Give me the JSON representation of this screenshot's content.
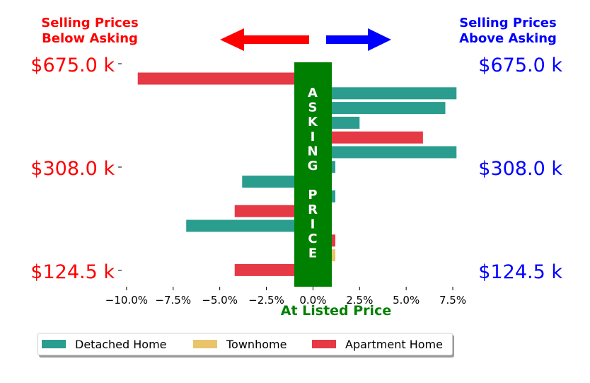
{
  "header": {
    "left_title_line1": "Selling Prices",
    "left_title_line2": "Below Asking",
    "right_title_line1": "Selling Prices",
    "right_title_line2": "Above Asking"
  },
  "colors": {
    "below": "#ff0000",
    "above": "#0000ff",
    "asking_band": "#008000",
    "detached": "#2a9d8f",
    "townhome": "#e9c46a",
    "apartment": "#e63946"
  },
  "price_labels": [
    "$675.0 k",
    "$308.0 k",
    "$124.5 k"
  ],
  "asking_band_text": [
    "A",
    "S",
    "K",
    "I",
    "N",
    "G",
    "",
    "P",
    "R",
    "I",
    "C",
    "E"
  ],
  "legend": [
    {
      "label": "Detached Home",
      "key": "detached"
    },
    {
      "label": "Townhome",
      "key": "townhome"
    },
    {
      "label": "Apartment Home",
      "key": "apartment"
    }
  ],
  "chart_data": {
    "type": "bar",
    "orientation": "horizontal",
    "xlabel": "At Listed Price",
    "xlim": [
      -0.1,
      0.08
    ],
    "xticks": [
      -0.1,
      -0.075,
      -0.05,
      -0.025,
      0.0,
      0.025,
      0.05,
      0.075
    ],
    "xtick_labels": [
      "−10.0%",
      "−7.5%",
      "−5.0%",
      "−2.5%",
      "0.0%",
      "2.5%",
      "5.0%",
      "7.5%"
    ],
    "y_tick_labels": [
      "$675.0 k",
      "$308.0 k",
      "$124.5 k"
    ],
    "bars": [
      {
        "type": "Apartment Home",
        "value": -0.094
      },
      {
        "type": "Detached Home",
        "value": 0.077
      },
      {
        "type": "Detached Home",
        "value": 0.071
      },
      {
        "type": "Detached Home",
        "value": 0.025
      },
      {
        "type": "Apartment Home",
        "value": 0.059
      },
      {
        "type": "Detached Home",
        "value": 0.077
      },
      {
        "type": "Detached Home",
        "value": 0.012
      },
      {
        "type": "Detached Home",
        "value": -0.038
      },
      {
        "type": "Detached Home",
        "value": 0.012
      },
      {
        "type": "Apartment Home",
        "value": -0.042
      },
      {
        "type": "Detached Home",
        "value": -0.068
      },
      {
        "type": "Apartment Home",
        "value": 0.012
      },
      {
        "type": "Townhome",
        "value": 0.012
      },
      {
        "type": "Apartment Home",
        "value": -0.042
      }
    ]
  }
}
